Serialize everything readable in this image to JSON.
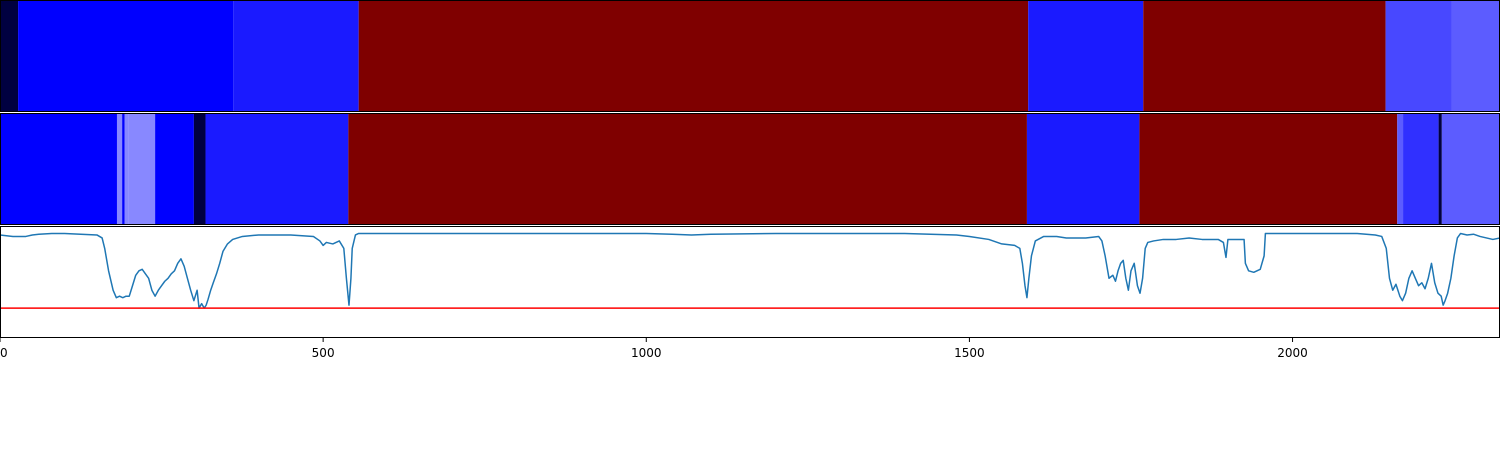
{
  "chart_data": {
    "type": "heatmap",
    "x_range": [
      0,
      2321
    ],
    "x_ticks": [
      {
        "value": 0,
        "label": "0"
      },
      {
        "value": 500,
        "label": "500"
      },
      {
        "value": 1000,
        "label": "1000"
      },
      {
        "value": 1500,
        "label": "1500"
      },
      {
        "value": 2000,
        "label": "2000"
      }
    ],
    "segment_tracks": [
      {
        "segments": [
          {
            "start": 0,
            "end": 28,
            "color": "#000040"
          },
          {
            "start": 28,
            "end": 361,
            "color": "#0000ff"
          },
          {
            "start": 361,
            "end": 555,
            "color": "#1a1aff"
          },
          {
            "start": 555,
            "end": 1591,
            "color": "#7f0000"
          },
          {
            "start": 1591,
            "end": 1769,
            "color": "#1a1aff"
          },
          {
            "start": 1769,
            "end": 2144,
            "color": "#7f0000"
          },
          {
            "start": 2144,
            "end": 2246,
            "color": "#4848ff"
          },
          {
            "start": 2246,
            "end": 2321,
            "color": "#5c5cff"
          }
        ]
      },
      {
        "segments": [
          {
            "start": 0,
            "end": 181,
            "color": "#0000ff"
          },
          {
            "start": 181,
            "end": 189,
            "color": "#8888ff"
          },
          {
            "start": 189,
            "end": 193,
            "color": "#0000ff"
          },
          {
            "start": 193,
            "end": 199,
            "color": "#8888ff"
          },
          {
            "start": 199,
            "end": 240,
            "color": "#8888ff"
          },
          {
            "start": 240,
            "end": 300,
            "color": "#0000ff"
          },
          {
            "start": 300,
            "end": 318,
            "color": "#000040"
          },
          {
            "start": 318,
            "end": 539,
            "color": "#1a1aff"
          },
          {
            "start": 539,
            "end": 1589,
            "color": "#7f0000"
          },
          {
            "start": 1589,
            "end": 1763,
            "color": "#1a1aff"
          },
          {
            "start": 1763,
            "end": 2162,
            "color": "#7f0000"
          },
          {
            "start": 2162,
            "end": 2171,
            "color": "#5c5cff"
          },
          {
            "start": 2171,
            "end": 2226,
            "color": "#3030ff"
          },
          {
            "start": 2226,
            "end": 2231,
            "color": "#000040"
          },
          {
            "start": 2231,
            "end": 2321,
            "color": "#5c5cff"
          }
        ]
      }
    ],
    "line_panel": {
      "ylim": [
        -0.7,
        0.05
      ],
      "line_color": "#1f77b4",
      "threshold": -0.5,
      "threshold_color": "#ff0000",
      "points": [
        [
          0,
          -0.01
        ],
        [
          20,
          -0.02
        ],
        [
          40,
          -0.02
        ],
        [
          50,
          -0.01
        ],
        [
          60,
          -0.005
        ],
        [
          80,
          0.0
        ],
        [
          100,
          0.0
        ],
        [
          150,
          -0.01
        ],
        [
          158,
          -0.03
        ],
        [
          162,
          -0.1
        ],
        [
          168,
          -0.25
        ],
        [
          175,
          -0.38
        ],
        [
          180,
          -0.43
        ],
        [
          185,
          -0.42
        ],
        [
          190,
          -0.43
        ],
        [
          195,
          -0.42
        ],
        [
          200,
          -0.42
        ],
        [
          205,
          -0.35
        ],
        [
          210,
          -0.28
        ],
        [
          215,
          -0.25
        ],
        [
          220,
          -0.24
        ],
        [
          225,
          -0.27
        ],
        [
          230,
          -0.3
        ],
        [
          235,
          -0.38
        ],
        [
          240,
          -0.42
        ],
        [
          245,
          -0.38
        ],
        [
          250,
          -0.35
        ],
        [
          255,
          -0.32
        ],
        [
          260,
          -0.3
        ],
        [
          265,
          -0.27
        ],
        [
          270,
          -0.25
        ],
        [
          275,
          -0.2
        ],
        [
          280,
          -0.17
        ],
        [
          285,
          -0.22
        ],
        [
          290,
          -0.3
        ],
        [
          295,
          -0.38
        ],
        [
          300,
          -0.45
        ],
        [
          305,
          -0.38
        ],
        [
          308,
          -0.5
        ],
        [
          312,
          -0.47
        ],
        [
          316,
          -0.5
        ],
        [
          319,
          -0.48
        ],
        [
          322,
          -0.44
        ],
        [
          326,
          -0.38
        ],
        [
          330,
          -0.33
        ],
        [
          335,
          -0.27
        ],
        [
          340,
          -0.2
        ],
        [
          345,
          -0.12
        ],
        [
          352,
          -0.07
        ],
        [
          360,
          -0.04
        ],
        [
          375,
          -0.02
        ],
        [
          400,
          -0.01
        ],
        [
          450,
          -0.01
        ],
        [
          485,
          -0.02
        ],
        [
          495,
          -0.05
        ],
        [
          500,
          -0.08
        ],
        [
          505,
          -0.06
        ],
        [
          515,
          -0.07
        ],
        [
          525,
          -0.05
        ],
        [
          532,
          -0.1
        ],
        [
          536,
          -0.3
        ],
        [
          540,
          -0.48
        ],
        [
          543,
          -0.3
        ],
        [
          545,
          -0.1
        ],
        [
          550,
          -0.01
        ],
        [
          555,
          0.0
        ],
        [
          600,
          0.0
        ],
        [
          800,
          0.0
        ],
        [
          900,
          0.0
        ],
        [
          1000,
          0.0
        ],
        [
          1040,
          -0.005
        ],
        [
          1070,
          -0.01
        ],
        [
          1100,
          -0.005
        ],
        [
          1200,
          0.0
        ],
        [
          1300,
          0.0
        ],
        [
          1400,
          0.0
        ],
        [
          1480,
          -0.01
        ],
        [
          1500,
          -0.02
        ],
        [
          1530,
          -0.04
        ],
        [
          1550,
          -0.07
        ],
        [
          1570,
          -0.08
        ],
        [
          1578,
          -0.1
        ],
        [
          1582,
          -0.2
        ],
        [
          1586,
          -0.35
        ],
        [
          1589,
          -0.43
        ],
        [
          1592,
          -0.3
        ],
        [
          1596,
          -0.15
        ],
        [
          1602,
          -0.05
        ],
        [
          1615,
          -0.02
        ],
        [
          1635,
          -0.02
        ],
        [
          1650,
          -0.03
        ],
        [
          1680,
          -0.03
        ],
        [
          1700,
          -0.02
        ],
        [
          1705,
          -0.05
        ],
        [
          1710,
          -0.15
        ],
        [
          1716,
          -0.3
        ],
        [
          1722,
          -0.28
        ],
        [
          1726,
          -0.32
        ],
        [
          1730,
          -0.25
        ],
        [
          1734,
          -0.2
        ],
        [
          1738,
          -0.18
        ],
        [
          1742,
          -0.3
        ],
        [
          1746,
          -0.38
        ],
        [
          1750,
          -0.25
        ],
        [
          1755,
          -0.2
        ],
        [
          1760,
          -0.35
        ],
        [
          1764,
          -0.4
        ],
        [
          1768,
          -0.3
        ],
        [
          1772,
          -0.1
        ],
        [
          1776,
          -0.06
        ],
        [
          1785,
          -0.05
        ],
        [
          1800,
          -0.04
        ],
        [
          1820,
          -0.04
        ],
        [
          1840,
          -0.03
        ],
        [
          1860,
          -0.04
        ],
        [
          1885,
          -0.04
        ],
        [
          1893,
          -0.06
        ],
        [
          1897,
          -0.16
        ],
        [
          1900,
          -0.04
        ],
        [
          1925,
          -0.04
        ],
        [
          1927,
          -0.2
        ],
        [
          1932,
          -0.25
        ],
        [
          1940,
          -0.26
        ],
        [
          1950,
          -0.24
        ],
        [
          1956,
          -0.15
        ],
        [
          1958,
          0.0
        ],
        [
          2000,
          0.0
        ],
        [
          2100,
          0.0
        ],
        [
          2128,
          -0.01
        ],
        [
          2138,
          -0.02
        ],
        [
          2145,
          -0.1
        ],
        [
          2150,
          -0.3
        ],
        [
          2155,
          -0.38
        ],
        [
          2160,
          -0.34
        ],
        [
          2166,
          -0.42
        ],
        [
          2170,
          -0.45
        ],
        [
          2175,
          -0.4
        ],
        [
          2180,
          -0.3
        ],
        [
          2185,
          -0.25
        ],
        [
          2190,
          -0.3
        ],
        [
          2195,
          -0.35
        ],
        [
          2200,
          -0.33
        ],
        [
          2205,
          -0.37
        ],
        [
          2210,
          -0.3
        ],
        [
          2215,
          -0.2
        ],
        [
          2220,
          -0.33
        ],
        [
          2225,
          -0.4
        ],
        [
          2230,
          -0.42
        ],
        [
          2233,
          -0.48
        ],
        [
          2236,
          -0.45
        ],
        [
          2240,
          -0.4
        ],
        [
          2245,
          -0.3
        ],
        [
          2250,
          -0.15
        ],
        [
          2255,
          -0.03
        ],
        [
          2260,
          0.0
        ],
        [
          2270,
          -0.01
        ],
        [
          2280,
          -0.005
        ],
        [
          2290,
          -0.02
        ],
        [
          2300,
          -0.03
        ],
        [
          2310,
          -0.04
        ],
        [
          2321,
          -0.03
        ]
      ]
    }
  }
}
